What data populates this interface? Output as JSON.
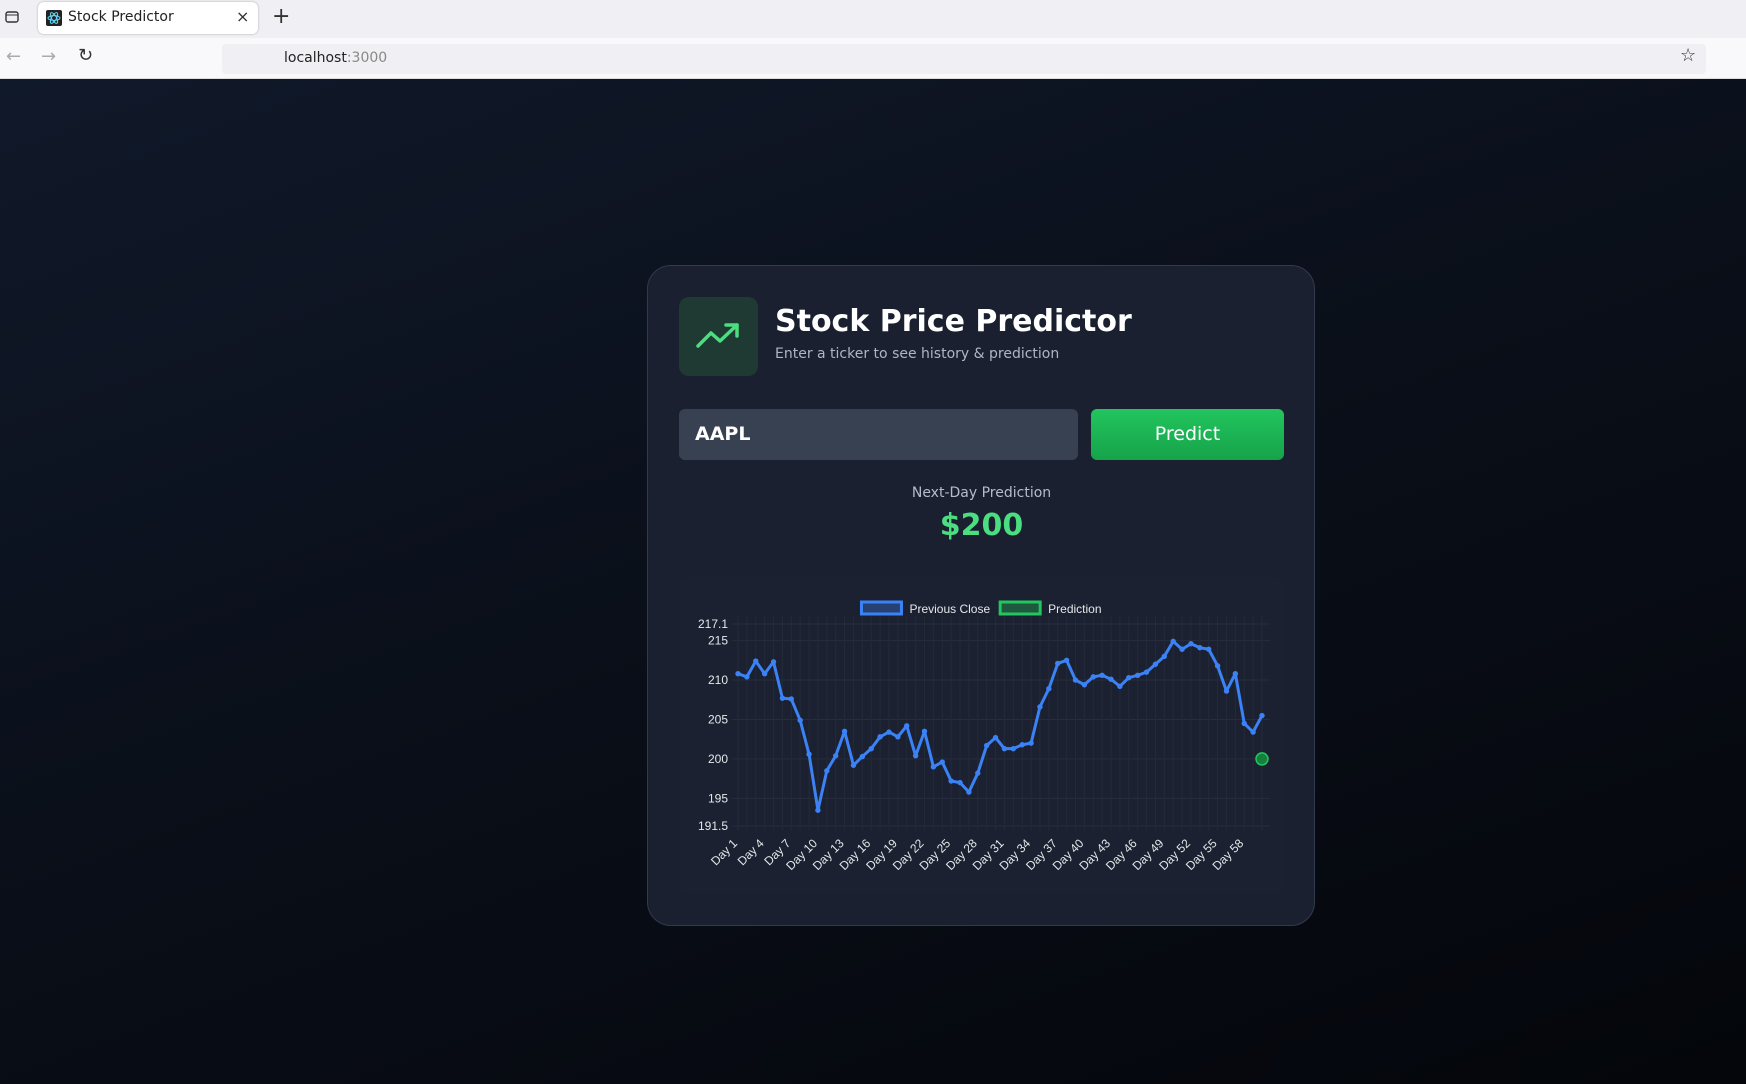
{
  "browser": {
    "tab_title": "Stock Predictor",
    "url_host": "localhost",
    "url_port": ":3000"
  },
  "card": {
    "title": "Stock Price Predictor",
    "subtitle": "Enter a ticker to see history & prediction",
    "ticker_input": "AAPL",
    "button": "Predict",
    "prediction_label": "Next-Day Prediction",
    "prediction_value": "$200"
  },
  "chart_data": {
    "type": "line",
    "categories": [
      "Day 1",
      null,
      null,
      "Day 4",
      null,
      null,
      "Day 7",
      null,
      null,
      "Day 10",
      null,
      null,
      "Day 13",
      null,
      null,
      "Day 16",
      null,
      null,
      "Day 19",
      null,
      null,
      "Day 22",
      null,
      null,
      "Day 25",
      null,
      null,
      "Day 28",
      null,
      null,
      "Day 31",
      null,
      null,
      "Day 34",
      null,
      null,
      "Day 37",
      null,
      null,
      "Day 40",
      null,
      null,
      "Day 43",
      null,
      null,
      "Day 46",
      null,
      null,
      "Day 49",
      null,
      null,
      "Day 52",
      null,
      null,
      "Day 55",
      null,
      null,
      "Day 58",
      null,
      null
    ],
    "series": [
      {
        "name": "Previous Close",
        "color": "#3b82f6",
        "values": [
          210.8,
          210.4,
          212.4,
          210.8,
          212.3,
          207.7,
          207.6,
          204.9,
          200.6,
          193.5,
          198.5,
          200.4,
          203.5,
          199.2,
          200.3,
          201.3,
          202.8,
          203.4,
          202.8,
          204.2,
          200.4,
          203.5,
          199.0,
          199.6,
          197.2,
          197.0,
          195.8,
          198.2,
          201.7,
          202.7,
          201.3,
          201.3,
          201.8,
          202.0,
          206.6,
          208.9,
          212.1,
          212.5,
          210.0,
          209.4,
          210.4,
          210.6,
          210.1,
          209.2,
          210.3,
          210.6,
          211.0,
          212.0,
          213.0,
          214.9,
          213.9,
          214.6,
          214.1,
          213.9,
          211.8,
          208.6,
          210.8,
          204.5,
          203.4,
          205.5
        ]
      },
      {
        "name": "Prediction",
        "color": "#22c55e",
        "values": [
          null,
          null,
          null,
          null,
          null,
          null,
          null,
          null,
          null,
          null,
          null,
          null,
          null,
          null,
          null,
          null,
          null,
          null,
          null,
          null,
          null,
          null,
          null,
          null,
          null,
          null,
          null,
          null,
          null,
          null,
          null,
          null,
          null,
          null,
          null,
          null,
          null,
          null,
          null,
          null,
          null,
          null,
          null,
          null,
          null,
          null,
          null,
          null,
          null,
          null,
          null,
          null,
          null,
          null,
          null,
          null,
          null,
          null,
          null,
          200
        ]
      }
    ],
    "ylim": [
      191.5,
      217.1
    ],
    "yticks": [
      191.5,
      195,
      200,
      205,
      210,
      215,
      217.1
    ],
    "grid": true,
    "legend": "top"
  }
}
